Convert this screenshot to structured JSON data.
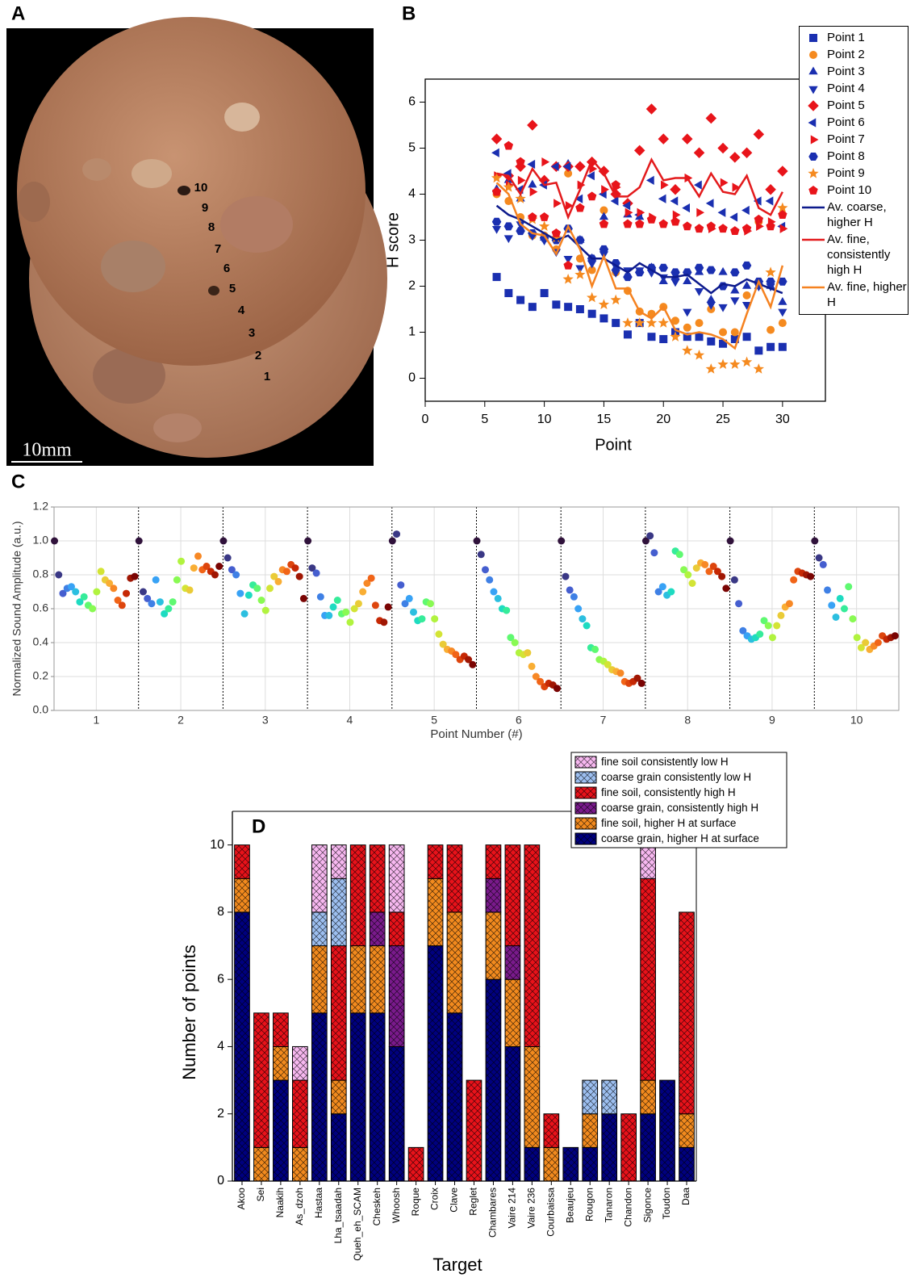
{
  "photo": {
    "panel": "A",
    "point_labels": [
      "10",
      "9",
      "8",
      "7",
      "6",
      "5",
      "4",
      "3",
      "2",
      "1"
    ],
    "scale_bar": "10mm"
  },
  "chart_data": [
    {
      "panel": "B",
      "type": "scatter",
      "x_label": "Point",
      "y_label": "H score",
      "xlim": [
        0,
        33.6
      ],
      "ylim": [
        -0.5,
        6.5
      ],
      "xticks": [
        0,
        5,
        10,
        15,
        20,
        25,
        30
      ],
      "yticks": [
        0,
        1,
        2,
        3,
        4,
        5,
        6
      ],
      "x": [
        6,
        7,
        8,
        9,
        10,
        11,
        12,
        13,
        14,
        15,
        16,
        17,
        18,
        19,
        20,
        21,
        22,
        23,
        24,
        25,
        26,
        27,
        28,
        29,
        30
      ],
      "series": [
        {
          "name": "Point 1",
          "color": "#1a2fb0",
          "marker": "square",
          "values": [
            2.2,
            1.85,
            1.7,
            1.55,
            1.85,
            1.6,
            1.55,
            1.5,
            1.4,
            1.3,
            1.2,
            0.95,
            1.2,
            0.9,
            0.85,
            1.0,
            0.9,
            0.9,
            0.8,
            0.75,
            0.85,
            0.9,
            0.6,
            0.68,
            0.68
          ]
        },
        {
          "name": "Point 2",
          "color": "#f58a1f",
          "marker": "circle",
          "values": [
            4.0,
            3.85,
            3.5,
            3.1,
            3.1,
            2.8,
            4.45,
            2.6,
            2.35,
            3.65,
            2.3,
            1.9,
            1.45,
            1.4,
            1.55,
            1.25,
            1.1,
            1.2,
            1.5,
            1.0,
            1.0,
            1.8,
            3.4,
            1.05,
            1.2
          ]
        },
        {
          "name": "Point 3",
          "color": "#1a2fb0",
          "marker": "triangle-up",
          "values": [
            4.1,
            4.3,
            3.9,
            4.2,
            3.05,
            3.05,
            4.65,
            3.0,
            2.6,
            3.5,
            2.4,
            3.55,
            3.5,
            2.4,
            2.1,
            2.2,
            2.1,
            2.3,
            1.7,
            2.3,
            1.9,
            2.0,
            2.0,
            2.0,
            1.65
          ]
        },
        {
          "name": "Point 4",
          "color": "#1a2fb0",
          "marker": "triangle-down",
          "values": [
            3.25,
            3.05,
            3.35,
            3.1,
            3.0,
            2.75,
            2.6,
            2.4,
            2.5,
            2.7,
            2.3,
            2.35,
            2.35,
            2.3,
            2.2,
            2.1,
            1.45,
            1.9,
            1.6,
            1.55,
            1.7,
            1.6,
            2.0,
            2.0,
            1.45
          ]
        },
        {
          "name": "Point 5",
          "color": "#e8141a",
          "marker": "diamond",
          "values": [
            5.2,
            4.4,
            4.6,
            5.5,
            4.3,
            4.6,
            4.6,
            4.6,
            4.7,
            4.5,
            4.0,
            3.8,
            4.95,
            5.85,
            5.2,
            4.1,
            5.2,
            4.9,
            5.65,
            5.0,
            4.8,
            4.9,
            5.3,
            4.1,
            4.5
          ]
        },
        {
          "name": "Point 6",
          "color": "#1a2fb0",
          "marker": "triangle-left",
          "values": [
            4.9,
            4.45,
            4.1,
            4.65,
            4.2,
            4.6,
            4.6,
            3.9,
            4.4,
            4.0,
            3.85,
            3.75,
            3.55,
            4.3,
            3.9,
            3.85,
            3.7,
            4.2,
            3.8,
            3.6,
            3.5,
            3.65,
            3.85,
            3.85,
            3.3
          ]
        },
        {
          "name": "Point 7",
          "color": "#e8141a",
          "marker": "triangle-right",
          "values": [
            4.4,
            4.2,
            4.3,
            4.05,
            4.7,
            3.8,
            3.75,
            4.2,
            4.55,
            4.1,
            4.15,
            3.6,
            3.6,
            3.5,
            4.2,
            3.55,
            4.35,
            3.6,
            3.25,
            4.25,
            4.15,
            3.2,
            3.3,
            3.4,
            3.25
          ]
        },
        {
          "name": "Point 8",
          "color": "#1a2fb0",
          "marker": "hexagon",
          "values": [
            3.4,
            3.3,
            3.2,
            3.15,
            3.05,
            3.0,
            3.25,
            3.0,
            2.6,
            2.8,
            2.5,
            2.2,
            2.3,
            2.4,
            2.4,
            2.3,
            2.3,
            2.4,
            2.35,
            2.0,
            2.3,
            2.45,
            2.1,
            2.1,
            2.1
          ]
        },
        {
          "name": "Point 9",
          "color": "#f58a1f",
          "marker": "star",
          "values": [
            4.35,
            4.15,
            3.9,
            3.45,
            3.3,
            3.05,
            2.15,
            2.25,
            1.75,
            1.6,
            1.7,
            1.2,
            1.2,
            1.2,
            1.2,
            0.9,
            0.6,
            0.5,
            0.2,
            0.3,
            0.3,
            0.35,
            0.2,
            2.3,
            3.7
          ]
        },
        {
          "name": "Point 10",
          "color": "#e8141a",
          "marker": "pentagon",
          "values": [
            4.05,
            5.05,
            4.7,
            3.5,
            3.5,
            3.15,
            2.45,
            3.7,
            3.95,
            3.35,
            4.2,
            3.35,
            3.35,
            3.45,
            3.35,
            3.4,
            3.3,
            3.25,
            3.3,
            3.25,
            3.2,
            3.25,
            3.45,
            3.3,
            3.55
          ]
        },
        {
          "name": "Av. coarse, higher H",
          "color": "#0d1a8c",
          "values": [
            3.75,
            3.55,
            3.45,
            3.3,
            3.15,
            3.0,
            3.1,
            2.85,
            2.6,
            2.6,
            2.45,
            2.3,
            2.5,
            2.35,
            2.2,
            2.2,
            2.25,
            2.05,
            1.85,
            2.05,
            2.0,
            2.15,
            2.05,
            1.95,
            1.85
          ]
        },
        {
          "name": "Av. fine, consistently high H",
          "color": "#e31a1c",
          "values": [
            4.45,
            4.4,
            4.0,
            4.55,
            4.2,
            4.25,
            3.5,
            4.1,
            4.75,
            4.45,
            3.95,
            3.95,
            4.15,
            4.75,
            4.3,
            4.35,
            4.35,
            3.95,
            4.45,
            4.05,
            4.0,
            4.4,
            3.7,
            3.55,
            4.05
          ]
        },
        {
          "name": "Av. fine, higher H",
          "color": "#f58220",
          "values": [
            4.25,
            4.0,
            3.35,
            3.15,
            3.1,
            2.7,
            3.3,
            2.8,
            2.0,
            2.65,
            1.95,
            1.95,
            1.45,
            1.3,
            1.55,
            1.05,
            0.95,
            1.0,
            0.95,
            0.85,
            0.65,
            1.4,
            2.1,
            1.55,
            2.45
          ]
        }
      ]
    },
    {
      "panel": "C",
      "type": "strip",
      "x_label": "Point Number (#)",
      "y_label": "Normalized Sound Amplitude (a.u.)",
      "categories": [
        "1",
        "2",
        "3",
        "4",
        "5",
        "6",
        "7",
        "8",
        "9",
        "10"
      ],
      "ylim": [
        0,
        1.2
      ],
      "yticks": [
        {
          "value": 0,
          "label": "0.0"
        },
        0.2,
        0.4,
        0.6,
        0.8,
        {
          "value": 1,
          "label": "1.0"
        },
        1.2
      ],
      "grid": true,
      "colormap": [
        "#30123b",
        "#4662d7",
        "#36aaf9",
        "#1ae4b6",
        "#72fe5e",
        "#c8ef34",
        "#faba39",
        "#f66b19",
        "#ca2a04",
        "#7a0403"
      ],
      "groups": [
        [
          1.0,
          0.8,
          0.69,
          0.72,
          0.73,
          0.7,
          0.64,
          0.67,
          0.62,
          0.6,
          0.7,
          0.82,
          0.77,
          0.75,
          0.72,
          0.65,
          0.62,
          0.69,
          0.78,
          0.79
        ],
        [
          1.0,
          0.7,
          0.66,
          0.63,
          0.77,
          0.64,
          0.57,
          0.6,
          0.64,
          0.77,
          0.88,
          0.72,
          0.71,
          0.84,
          0.91,
          0.83,
          0.85,
          0.82,
          0.8,
          0.85
        ],
        [
          1.0,
          0.9,
          0.83,
          0.8,
          0.69,
          0.57,
          0.68,
          0.74,
          0.72,
          0.65,
          0.59,
          0.72,
          0.79,
          0.76,
          0.83,
          0.82,
          0.86,
          0.84,
          0.79,
          0.66
        ],
        [
          1.0,
          0.84,
          0.81,
          0.67,
          0.56,
          0.56,
          0.61,
          0.65,
          0.57,
          0.58,
          0.52,
          0.6,
          0.63,
          0.7,
          0.75,
          0.78,
          0.62,
          0.53,
          0.52,
          0.61
        ],
        [
          1.0,
          1.04,
          0.74,
          0.63,
          0.66,
          0.58,
          0.53,
          0.54,
          0.64,
          0.63,
          0.54,
          0.45,
          0.39,
          0.36,
          0.35,
          0.33,
          0.3,
          0.32,
          0.3,
          0.27
        ],
        [
          1.0,
          0.92,
          0.83,
          0.77,
          0.7,
          0.66,
          0.6,
          0.59,
          0.43,
          0.4,
          0.34,
          0.33,
          0.34,
          0.26,
          0.2,
          0.17,
          0.14,
          0.16,
          0.15,
          0.13
        ],
        [
          1.0,
          0.79,
          0.71,
          0.67,
          0.6,
          0.54,
          0.5,
          0.37,
          0.36,
          0.3,
          0.29,
          0.27,
          0.24,
          0.23,
          0.22,
          0.17,
          0.16,
          0.17,
          0.19,
          0.16
        ],
        [
          1.0,
          1.03,
          0.93,
          0.7,
          0.73,
          0.68,
          0.7,
          0.94,
          0.92,
          0.83,
          0.8,
          0.75,
          0.84,
          0.87,
          0.86,
          0.82,
          0.85,
          0.82,
          0.79,
          0.72
        ],
        [
          1.0,
          0.77,
          0.63,
          0.47,
          0.44,
          0.42,
          0.43,
          0.45,
          0.53,
          0.5,
          0.43,
          0.5,
          0.56,
          0.61,
          0.63,
          0.77,
          0.82,
          0.81,
          0.8,
          0.79
        ],
        [
          1.0,
          0.9,
          0.86,
          0.71,
          0.62,
          0.55,
          0.66,
          0.6,
          0.73,
          0.54,
          0.43,
          0.37,
          0.4,
          0.36,
          0.38,
          0.4,
          0.44,
          0.42,
          0.43,
          0.44
        ]
      ]
    },
    {
      "panel": "D",
      "type": "stacked_bar",
      "x_label": "Target",
      "y_label": "Number of points",
      "categories": [
        "Akoo",
        "Sei",
        "Naakih",
        "As_dzoh",
        "Hastaa",
        "Lha_tsaadah",
        "Queh_eh_SCAM",
        "Cheskeh",
        "Whoosh",
        "Roque",
        "Croix",
        "Clave",
        "Reglet",
        "Chambares",
        "Vaire 214",
        "Vaire 236",
        "Courbaissa",
        "Beaujeu",
        "Rougon",
        "Tanaron",
        "Chandon",
        "Sigonce",
        "Toudon",
        "Daa"
      ],
      "ylim": [
        0,
        11
      ],
      "yticks": [
        0,
        2,
        4,
        6,
        8,
        10
      ],
      "hatch": true,
      "series": [
        {
          "name": "coarse grain, higher H at surface",
          "color": "#00007f",
          "values": [
            8,
            0,
            3,
            0,
            5,
            2,
            5,
            5,
            4,
            0,
            7,
            5,
            0,
            6,
            4,
            1,
            0,
            1,
            1,
            2,
            0,
            2,
            3,
            1
          ]
        },
        {
          "name": "fine soil, higher H at surface",
          "color": "#f28a1e",
          "values": [
            1,
            1,
            1,
            1,
            2,
            1,
            2,
            2,
            0,
            0,
            2,
            3,
            0,
            2,
            2,
            3,
            1,
            0,
            1,
            0,
            0,
            1,
            0,
            1
          ]
        },
        {
          "name": "coarse grain, consistently high H",
          "color": "#7a1a8c",
          "values": [
            0,
            0,
            0,
            0,
            0,
            0,
            0,
            1,
            3,
            0,
            0,
            0,
            0,
            1,
            1,
            0,
            0,
            0,
            0,
            0,
            0,
            0,
            0,
            0
          ]
        },
        {
          "name": "fine soil, consistently high H",
          "color": "#e8121a",
          "values": [
            1,
            4,
            1,
            2,
            0,
            4,
            3,
            2,
            1,
            1,
            1,
            2,
            3,
            1,
            3,
            6,
            1,
            0,
            0,
            0,
            2,
            6,
            0,
            6
          ]
        },
        {
          "name": "coarse grain consistently low H",
          "color": "#9dbff0",
          "values": [
            0,
            0,
            0,
            0,
            1,
            2,
            0,
            0,
            0,
            0,
            0,
            0,
            0,
            0,
            0,
            0,
            0,
            0,
            1,
            1,
            0,
            0,
            0,
            0
          ]
        },
        {
          "name": "fine soil consistently low H",
          "color": "#f7b8f0",
          "values": [
            0,
            0,
            0,
            1,
            2,
            1,
            0,
            0,
            2,
            0,
            0,
            0,
            0,
            0,
            0,
            0,
            0,
            0,
            0,
            0,
            0,
            1,
            0,
            0
          ]
        }
      ]
    }
  ]
}
